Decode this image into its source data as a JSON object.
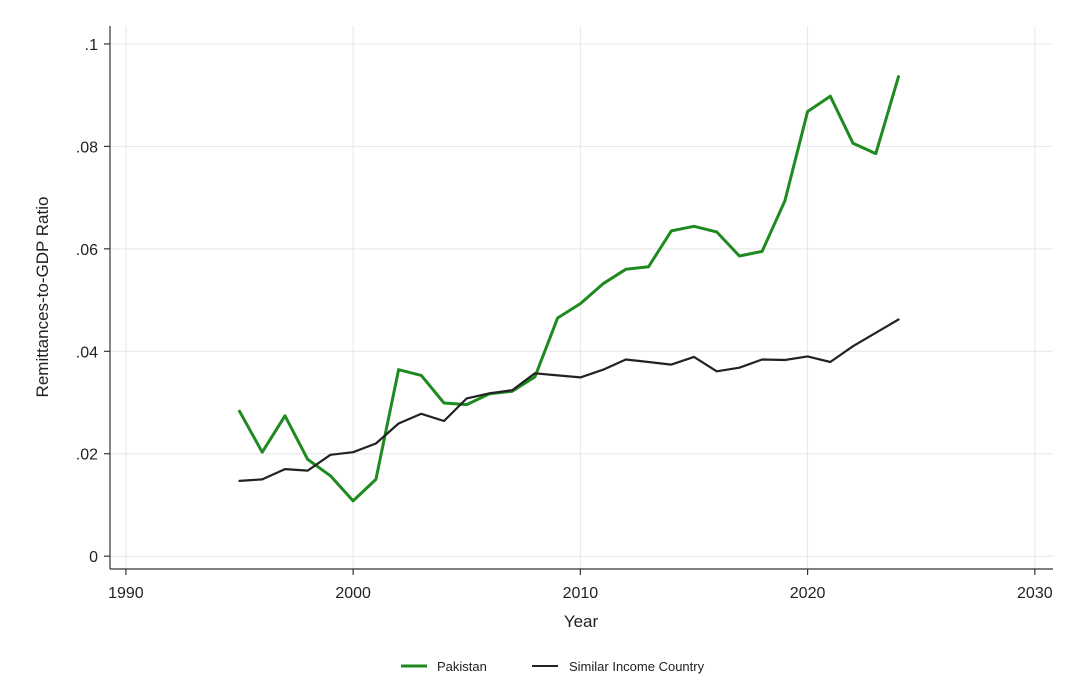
{
  "chart_data": {
    "type": "line",
    "xlabel": "Year",
    "ylabel": "Remittances-to-GDP Ratio",
    "xlim": [
      1989.3,
      2030.8
    ],
    "ylim": [
      -0.0025,
      0.1035
    ],
    "xticks": [
      1990,
      2000,
      2010,
      2020,
      2030
    ],
    "xtick_labels": [
      "1990",
      "2000",
      "2010",
      "2020",
      "2030"
    ],
    "yticks": [
      0,
      0.02,
      0.04,
      0.06,
      0.08,
      0.1
    ],
    "ytick_labels": [
      "0",
      ".02",
      ".04",
      ".06",
      ".08",
      ".1"
    ],
    "grid": true,
    "legend_position": "bottom",
    "x": [
      1995,
      1996,
      1997,
      1998,
      1999,
      2000,
      2001,
      2002,
      2003,
      2004,
      2005,
      2006,
      2007,
      2008,
      2009,
      2010,
      2011,
      2012,
      2013,
      2014,
      2015,
      2016,
      2017,
      2018,
      2019,
      2020,
      2021,
      2022,
      2023,
      2024
    ],
    "series": [
      {
        "name": "Pakistan",
        "color": "#1f8a1f",
        "values": [
          0.0283,
          0.0203,
          0.0274,
          0.0189,
          0.0157,
          0.0108,
          0.015,
          0.0364,
          0.0353,
          0.0299,
          0.0296,
          0.0317,
          0.0322,
          0.035,
          0.0465,
          0.0493,
          0.0532,
          0.056,
          0.0565,
          0.0635,
          0.0644,
          0.0633,
          0.0586,
          0.0595,
          0.0694,
          0.0868,
          0.0898,
          0.0806,
          0.0786,
          0.0936
        ]
      },
      {
        "name": "Similar Income Country",
        "color": "#222222",
        "values": [
          0.0147,
          0.015,
          0.017,
          0.0167,
          0.0198,
          0.0203,
          0.022,
          0.0259,
          0.0278,
          0.0264,
          0.0308,
          0.0318,
          0.0324,
          0.0357,
          0.0353,
          0.0349,
          0.0364,
          0.0384,
          0.0379,
          0.0374,
          0.0389,
          0.0361,
          0.0368,
          0.0384,
          0.0383,
          0.039,
          0.0379,
          0.041,
          0.0436,
          0.0462
        ]
      }
    ]
  }
}
